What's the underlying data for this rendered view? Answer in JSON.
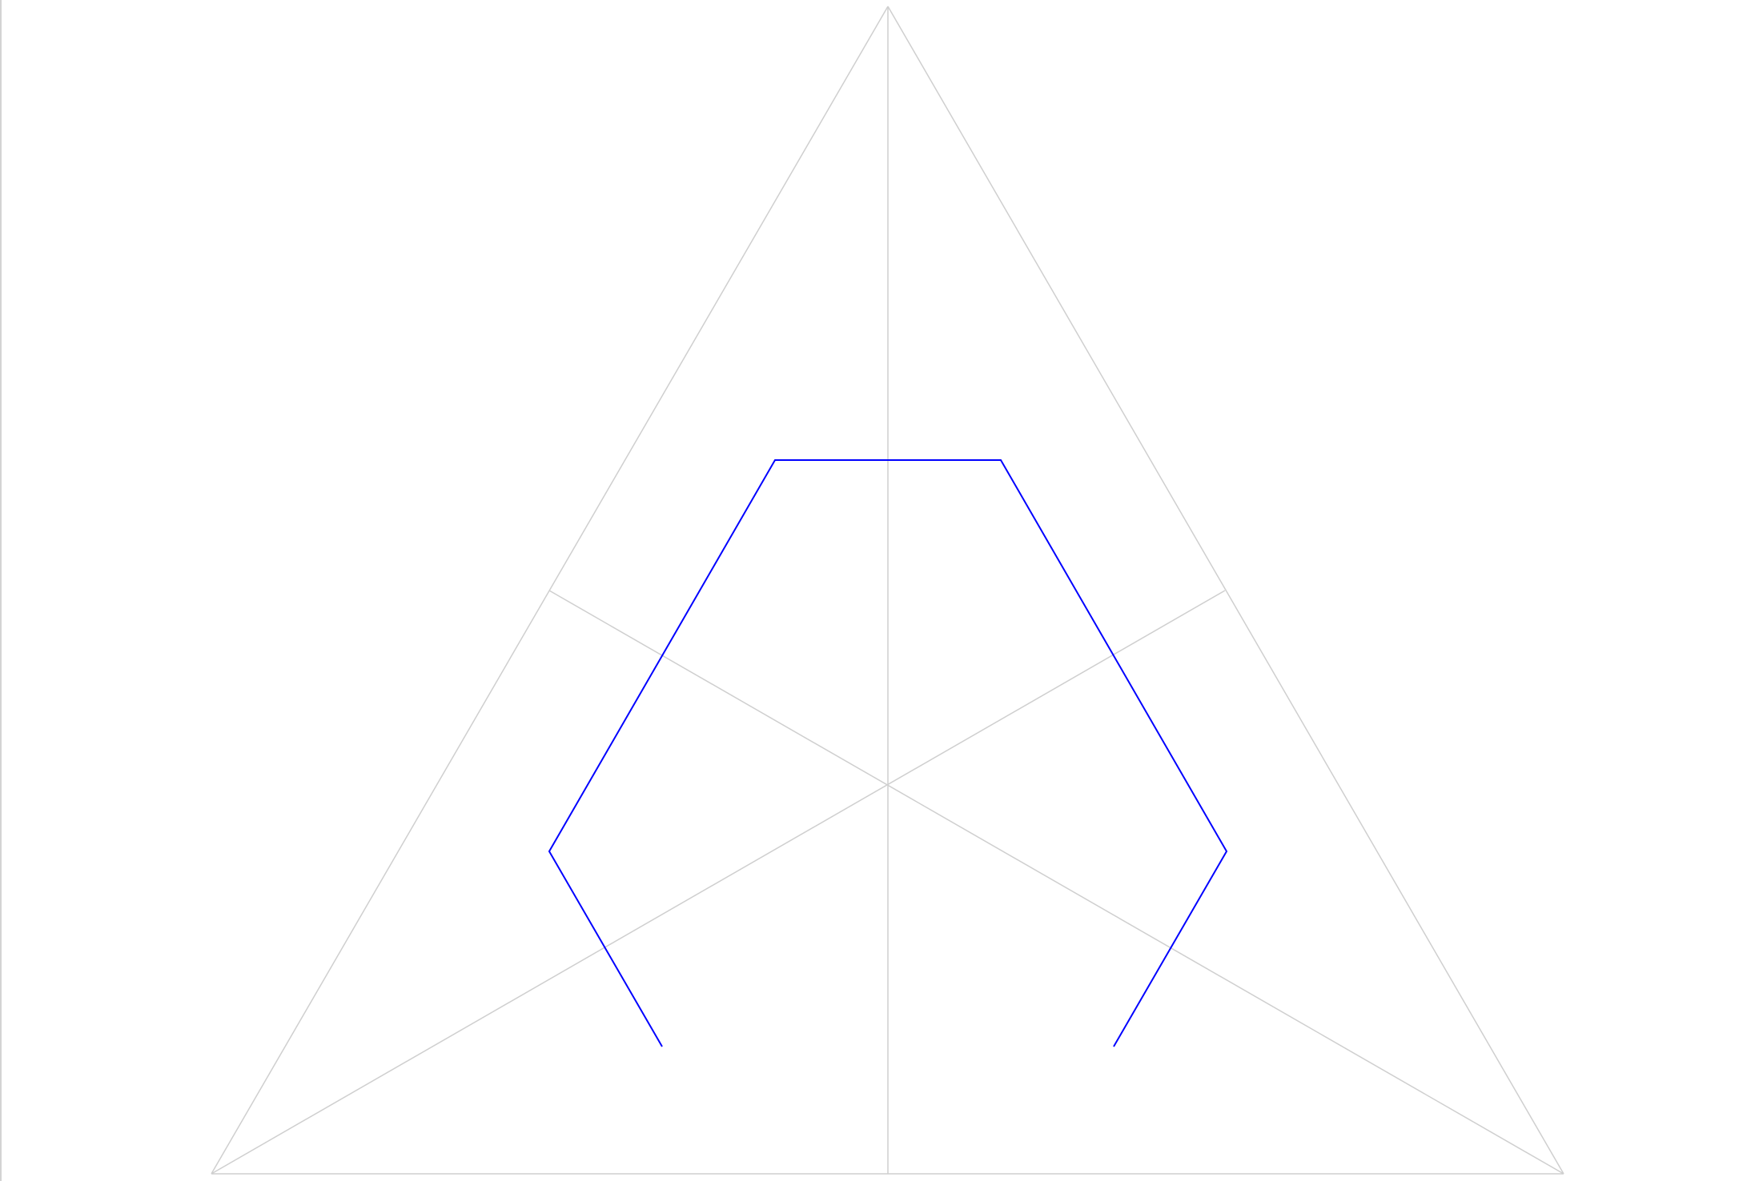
{
  "diagram": {
    "colors": {
      "guide": "#cfcfcf",
      "path": "#0000ff",
      "background": "#ffffff",
      "frame": "#d3d3d3"
    },
    "labels": []
  }
}
